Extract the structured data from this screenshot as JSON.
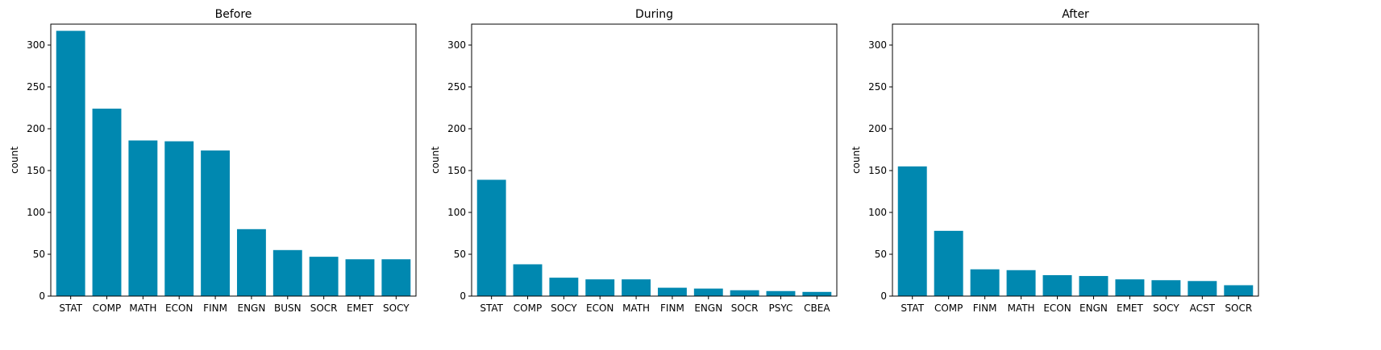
{
  "chart_data": [
    {
      "type": "bar",
      "title": "Before",
      "xlabel": "",
      "ylabel": "count",
      "ylim": [
        0,
        325
      ],
      "yticks": [
        0,
        50,
        100,
        150,
        200,
        250,
        300
      ],
      "categories": [
        "STAT",
        "COMP",
        "MATH",
        "ECON",
        "FINM",
        "ENGN",
        "BUSN",
        "SOCR",
        "EMET",
        "SOCY"
      ],
      "values": [
        317,
        224,
        186,
        185,
        174,
        80,
        55,
        47,
        44,
        44
      ],
      "color": "#0088b0"
    },
    {
      "type": "bar",
      "title": "During",
      "xlabel": "",
      "ylabel": "count",
      "ylim": [
        0,
        325
      ],
      "yticks": [
        0,
        50,
        100,
        150,
        200,
        250,
        300
      ],
      "categories": [
        "STAT",
        "COMP",
        "SOCY",
        "ECON",
        "MATH",
        "FINM",
        "ENGN",
        "SOCR",
        "PSYC",
        "CBEA"
      ],
      "values": [
        139,
        38,
        22,
        20,
        20,
        10,
        9,
        7,
        6,
        5
      ],
      "color": "#0088b0"
    },
    {
      "type": "bar",
      "title": "After",
      "xlabel": "",
      "ylabel": "count",
      "ylim": [
        0,
        325
      ],
      "yticks": [
        0,
        50,
        100,
        150,
        200,
        250,
        300
      ],
      "categories": [
        "STAT",
        "COMP",
        "FINM",
        "MATH",
        "ECON",
        "ENGN",
        "EMET",
        "SOCY",
        "ACST",
        "SOCR"
      ],
      "values": [
        155,
        78,
        32,
        31,
        25,
        24,
        20,
        19,
        18,
        13
      ],
      "color": "#0088b0"
    }
  ]
}
